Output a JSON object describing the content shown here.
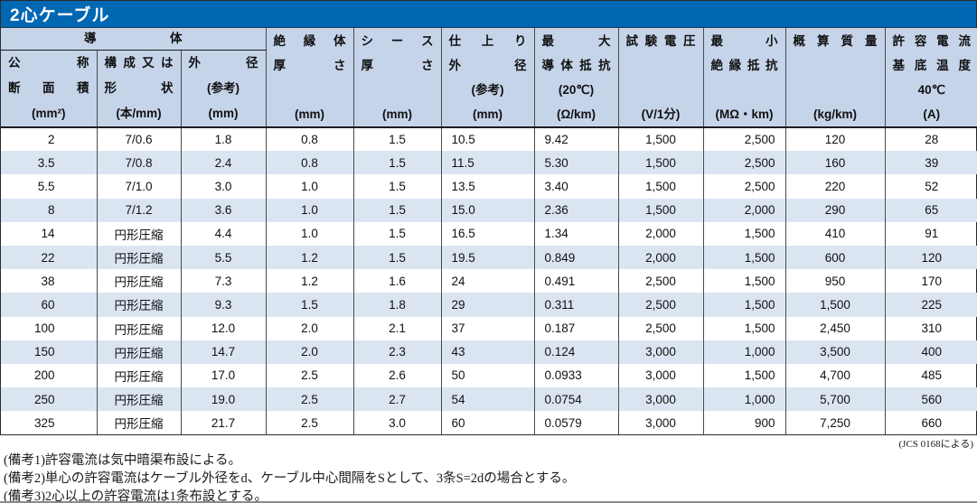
{
  "title": "2心ケーブル",
  "table": {
    "group_header": "導 体",
    "columns": [
      {
        "id": "nominal-cross-section",
        "lines": [
          "公 称",
          "断 面 積",
          "(mm²)"
        ]
      },
      {
        "id": "composition-or-shape",
        "lines": [
          "構 成 又 は",
          "形 状",
          "(本/mm)"
        ]
      },
      {
        "id": "conductor-outer-diameter",
        "lines": [
          "外 径",
          "(参考)",
          "(mm)"
        ]
      },
      {
        "id": "insulation-thickness",
        "lines": [
          "絶 縁 体",
          "厚 さ",
          "",
          "(mm)"
        ]
      },
      {
        "id": "sheath-thickness",
        "lines": [
          "シ ー ス",
          "厚 さ",
          "",
          "(mm)"
        ]
      },
      {
        "id": "finished-outer-diameter",
        "lines": [
          "仕 上 り",
          "外 径",
          "(参考)",
          "(mm)"
        ]
      },
      {
        "id": "max-conductor-resistance",
        "lines": [
          "最 大",
          "導 体 抵 抗",
          "(20℃)",
          "(Ω/km)"
        ]
      },
      {
        "id": "test-voltage",
        "lines": [
          "試 験 電 圧",
          "",
          "",
          "(V/1分)"
        ]
      },
      {
        "id": "min-insulation-resistance",
        "lines": [
          "最 小",
          "絶 縁 抵 抗",
          "",
          "(MΩ・km)"
        ]
      },
      {
        "id": "approx-mass",
        "lines": [
          "概 算 質 量",
          "",
          "",
          "(kg/km)"
        ]
      },
      {
        "id": "allowable-current",
        "lines": [
          "許 容 電 流",
          "基 底 温 度",
          "40℃",
          "(A)"
        ]
      }
    ],
    "rows": [
      [
        "2",
        "7/0.6",
        "1.8",
        "0.8",
        "1.5",
        "10.5",
        "9.42",
        "1,500",
        "2,500",
        "120",
        "28"
      ],
      [
        "3.5",
        "7/0.8",
        "2.4",
        "0.8",
        "1.5",
        "11.5",
        "5.30",
        "1,500",
        "2,500",
        "160",
        "39"
      ],
      [
        "5.5",
        "7/1.0",
        "3.0",
        "1.0",
        "1.5",
        "13.5",
        "3.40",
        "1,500",
        "2,500",
        "220",
        "52"
      ],
      [
        "8",
        "7/1.2",
        "3.6",
        "1.0",
        "1.5",
        "15.0",
        "2.36",
        "1,500",
        "2,000",
        "290",
        "65"
      ],
      [
        "14",
        "円形圧縮",
        "4.4",
        "1.0",
        "1.5",
        "16.5",
        "1.34",
        "2,000",
        "1,500",
        "410",
        "91"
      ],
      [
        "22",
        "円形圧縮",
        "5.5",
        "1.2",
        "1.5",
        "19.5",
        "0.849",
        "2,000",
        "1,500",
        "600",
        "120"
      ],
      [
        "38",
        "円形圧縮",
        "7.3",
        "1.2",
        "1.6",
        "24",
        "0.491",
        "2,500",
        "1,500",
        "950",
        "170"
      ],
      [
        "60",
        "円形圧縮",
        "9.3",
        "1.5",
        "1.8",
        "29",
        "0.311",
        "2,500",
        "1,500",
        "1,500",
        "225"
      ],
      [
        "100",
        "円形圧縮",
        "12.0",
        "2.0",
        "2.1",
        "37",
        "0.187",
        "2,500",
        "1,500",
        "2,450",
        "310"
      ],
      [
        "150",
        "円形圧縮",
        "14.7",
        "2.0",
        "2.3",
        "43",
        "0.124",
        "3,000",
        "1,000",
        "3,500",
        "400"
      ],
      [
        "200",
        "円形圧縮",
        "17.0",
        "2.5",
        "2.6",
        "50",
        "0.0933",
        "3,000",
        "1,500",
        "4,700",
        "485"
      ],
      [
        "250",
        "円形圧縮",
        "19.0",
        "2.5",
        "2.7",
        "54",
        "0.0754",
        "3,000",
        "1,000",
        "5,700",
        "560"
      ],
      [
        "325",
        "円形圧縮",
        "21.7",
        "2.5",
        "3.0",
        "60",
        "0.0579",
        "3,000",
        "900",
        "7,250",
        "660"
      ]
    ]
  },
  "footer": {
    "source": "(JCS 0168による)",
    "notes": [
      "(備考1)許容電流は気中暗渠布設による。",
      "(備考2)単心の許容電流はケーブル外径をd、ケーブル中心間隔をSとして、3条S=2dの場合とする。",
      "(備考3)2心以上の許容電流は1条布設とする。"
    ]
  },
  "colors": {
    "title_bar": "#0067b3",
    "header_bg": "#c6d4ea",
    "zebra_row_bg": "#dbe5f2"
  }
}
